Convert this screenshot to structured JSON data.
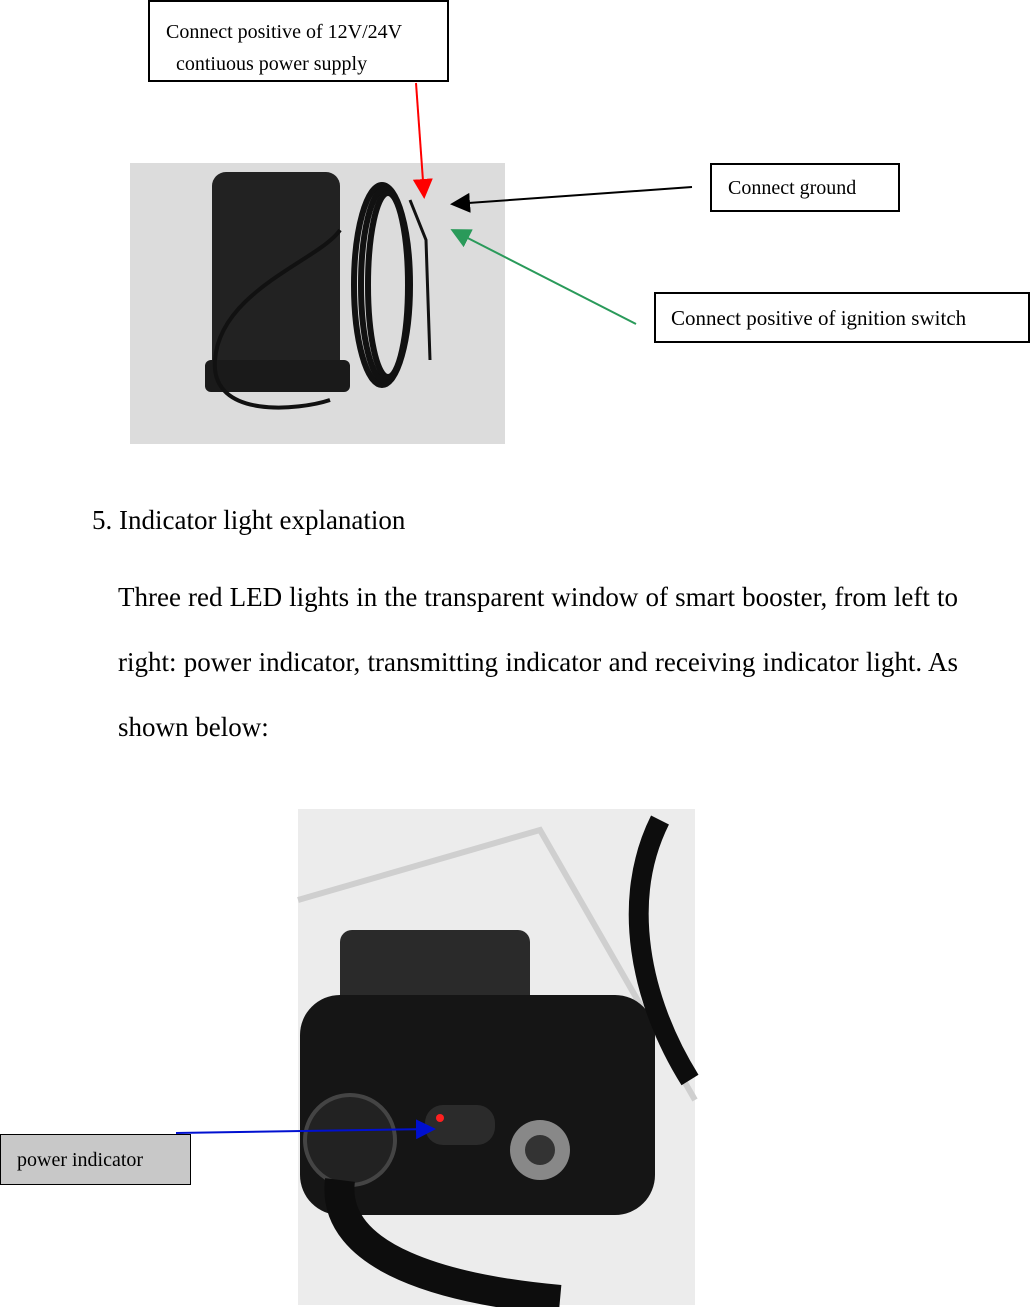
{
  "callouts": {
    "power_supply": [
      "Connect positive of 12V/24V",
      "contiuous power supply"
    ],
    "ground": "Connect ground",
    "ignition": "Connect positive of ignition switch",
    "power_indicator": "power indicator"
  },
  "section": {
    "heading": "5. Indicator light explanation",
    "paragraph": "Three red LED lights in the transparent window of smart booster, from left to right: power indicator, transmitting indicator and receiving indicator light. As shown below:"
  }
}
